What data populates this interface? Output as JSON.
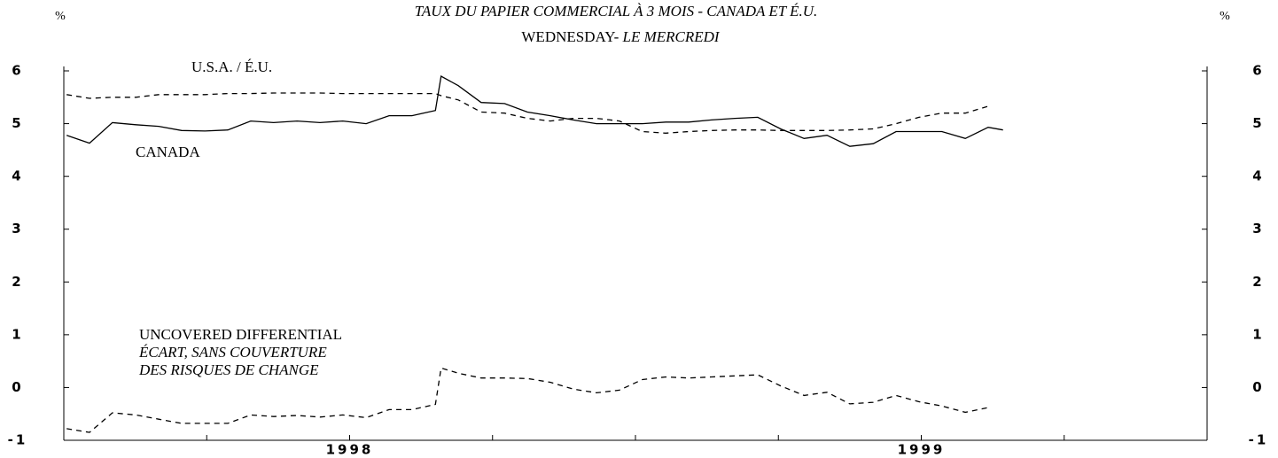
{
  "chart_data": {
    "type": "line",
    "title": "TAUX DU PAPIER COMMERCIAL À 3 MOIS - CANADA ET É.U.",
    "subtitle": [
      "WEDNESDAY-",
      "LE MERCREDI"
    ],
    "y_unit": "%",
    "y2_unit": "%",
    "x": [
      1997.505,
      1997.545,
      1997.585,
      1997.626,
      1997.666,
      1997.706,
      1997.747,
      1997.787,
      1997.827,
      1997.867,
      1997.908,
      1997.948,
      1997.988,
      1998.029,
      1998.069,
      1998.109,
      1998.15,
      1998.16,
      1998.19,
      1998.23,
      1998.271,
      1998.311,
      1998.351,
      1998.391,
      1998.432,
      1998.472,
      1998.512,
      1998.553,
      1998.593,
      1998.633,
      1998.674,
      1998.714,
      1998.754,
      1998.795,
      1998.835,
      1998.875,
      1998.916,
      1998.956,
      1998.996,
      1999.036,
      1999.077,
      1999.117,
      1999.143
    ],
    "series": [
      {
        "name": "CANADA",
        "color": "#000000",
        "dash": false,
        "values": [
          4.78,
          4.63,
          5.02,
          4.98,
          4.95,
          4.87,
          4.86,
          4.88,
          5.05,
          5.02,
          5.05,
          5.02,
          5.05,
          5.0,
          5.15,
          5.15,
          5.25,
          5.9,
          5.72,
          5.4,
          5.38,
          5.22,
          5.15,
          5.07,
          5.0,
          5.0,
          5.0,
          5.03,
          5.03,
          5.07,
          5.1,
          5.12,
          4.9,
          4.72,
          4.78,
          4.57,
          4.62,
          4.85,
          4.85,
          4.85,
          4.72,
          4.93,
          4.88
        ]
      },
      {
        "name": "U.S.A. / É.U.",
        "color": "#000000",
        "dash": true,
        "values": [
          5.55,
          5.48,
          5.5,
          5.5,
          5.55,
          5.55,
          5.55,
          5.57,
          5.57,
          5.58,
          5.58,
          5.58,
          5.57,
          5.57,
          5.57,
          5.57,
          5.57,
          5.53,
          5.45,
          5.22,
          5.2,
          5.1,
          5.05,
          5.1,
          5.1,
          5.05,
          4.85,
          4.82,
          4.85,
          4.87,
          4.88,
          4.88,
          4.87,
          4.87,
          4.87,
          4.88,
          4.9,
          5.0,
          5.12,
          5.2,
          5.2,
          5.33,
          null
        ]
      },
      {
        "name": "UNCOVERED DIFFERENTIAL",
        "subname": [
          "ÉCART, SANS COUVERTURE",
          "DES RISQUES DE CHANGE"
        ],
        "color": "#000000",
        "dash": true,
        "values": [
          -0.78,
          -0.85,
          -0.48,
          -0.52,
          -0.6,
          -0.68,
          -0.68,
          -0.68,
          -0.52,
          -0.55,
          -0.53,
          -0.56,
          -0.52,
          -0.57,
          -0.42,
          -0.42,
          -0.32,
          0.37,
          0.27,
          0.18,
          0.18,
          0.17,
          0.1,
          -0.03,
          -0.1,
          -0.05,
          0.15,
          0.2,
          0.18,
          0.2,
          0.22,
          0.24,
          0.03,
          -0.15,
          -0.09,
          -0.31,
          -0.28,
          -0.15,
          -0.27,
          -0.35,
          -0.47,
          -0.38,
          null
        ]
      }
    ],
    "xlim": [
      1997.5,
      1999.5
    ],
    "xticks": [
      1998,
      1999
    ],
    "xminor_ticks": [
      1997.5,
      1997.75,
      1998,
      1998.25,
      1998.5,
      1998.75,
      1999,
      1999.25,
      1999.5
    ],
    "ylim": [
      -1,
      6
    ],
    "yticks": [
      -1,
      0,
      1,
      2,
      3,
      4,
      5,
      6
    ],
    "grid": false
  }
}
